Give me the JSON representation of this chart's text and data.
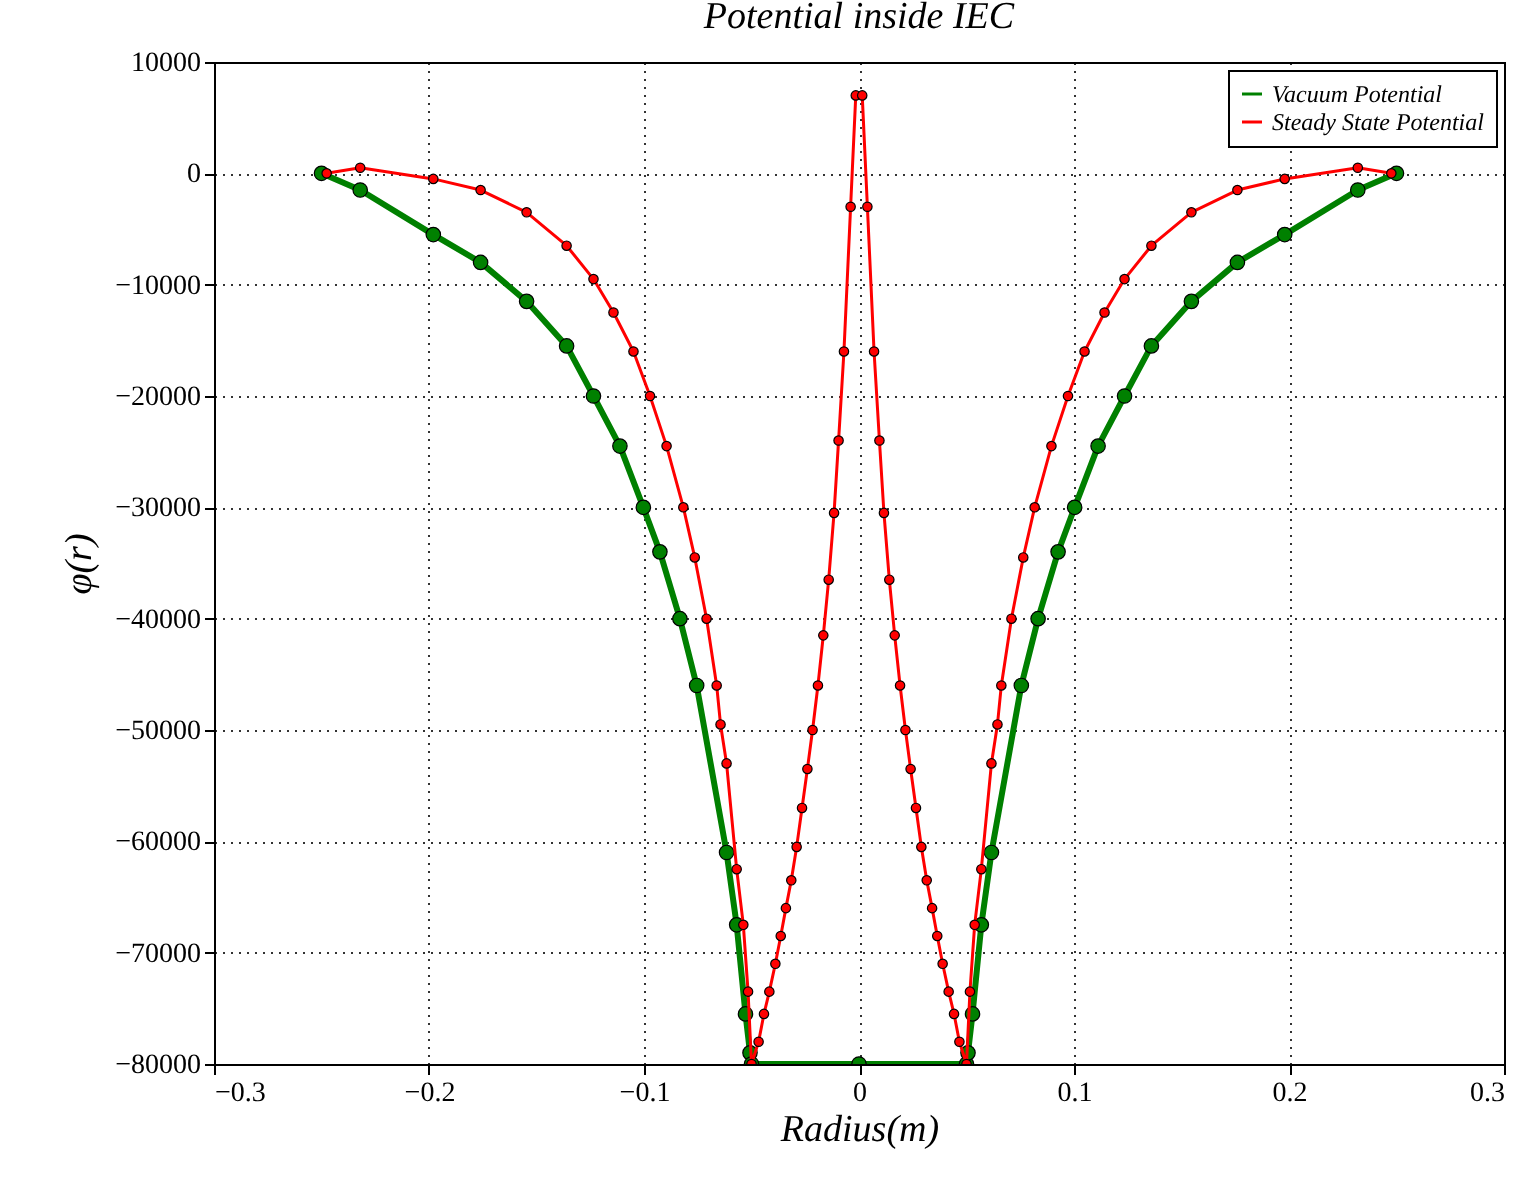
{
  "chart_data": {
    "type": "line",
    "title": "Potential inside IEC",
    "xlabel": "Radius(m)",
    "ylabel": "φ(r)",
    "series": [
      {
        "name": "Vacuum Potential",
        "color": "#008000",
        "x": [
          -0.25,
          -0.232,
          -0.198,
          -0.176,
          -0.1546,
          -0.136,
          -0.1235,
          -0.1112,
          -0.1003,
          -0.0926,
          -0.0833,
          -0.0755,
          -0.0616,
          -0.0569,
          -0.0528,
          -0.0507,
          -0.05,
          0,
          0.05,
          0.0507,
          0.0528,
          0.0569,
          0.0616,
          0.0755,
          0.0833,
          0.0926,
          0.1003,
          0.1112,
          0.1235,
          0.136,
          0.1546,
          0.176,
          0.198,
          0.232,
          0.25
        ],
        "values": [
          0,
          -1500,
          -5500,
          -8000,
          -11500,
          -15500,
          -20000,
          -24500,
          -30000,
          -34000,
          -40000,
          -46000,
          -61000,
          -67500,
          -75500,
          -79000,
          -80000,
          -80000,
          -80000,
          -79000,
          -75500,
          -67500,
          -61000,
          -46000,
          -40000,
          -34000,
          -30000,
          -24500,
          -20000,
          -15500,
          -11500,
          -8000,
          -5500,
          -1500,
          0
        ]
      },
      {
        "name": "Steady State Potential",
        "color": "#ff0000",
        "x": [
          -0.2476,
          -0.232,
          -0.198,
          -0.176,
          -0.1546,
          -0.136,
          -0.1235,
          -0.1142,
          -0.1049,
          -0.0972,
          -0.0895,
          -0.0817,
          -0.0764,
          -0.0709,
          -0.0662,
          -0.0644,
          -0.0616,
          -0.0569,
          -0.0538,
          -0.0516,
          -0.05,
          -0.0467,
          -0.0442,
          -0.0417,
          -0.0389,
          -0.0364,
          -0.034,
          -0.0315,
          -0.029,
          -0.0265,
          -0.024,
          -0.0216,
          -0.0191,
          -0.0166,
          -0.0141,
          -0.0116,
          -0.0095,
          -0.007,
          -0.0039,
          -0.0015,
          0.0015,
          0.0039,
          0.007,
          0.0095,
          0.0116,
          0.0141,
          0.0166,
          0.0191,
          0.0216,
          0.024,
          0.0265,
          0.029,
          0.0315,
          0.034,
          0.0364,
          0.0389,
          0.0417,
          0.0442,
          0.0467,
          0.05,
          0.0516,
          0.0538,
          0.0569,
          0.0616,
          0.0644,
          0.0662,
          0.0709,
          0.0764,
          0.0817,
          0.0895,
          0.0972,
          0.1049,
          0.1142,
          0.1235,
          0.136,
          0.1546,
          0.176,
          0.198,
          0.232,
          0.2476
        ],
        "values": [
          0,
          500,
          -500,
          -1500,
          -3500,
          -6500,
          -9500,
          -12500,
          -16000,
          -20000,
          -24500,
          -30000,
          -34500,
          -40000,
          -46000,
          -49500,
          -53000,
          -62500,
          -67500,
          -73500,
          -80000,
          -78000,
          -75500,
          -73500,
          -71000,
          -68500,
          -66000,
          -63500,
          -60500,
          -57000,
          -53500,
          -50000,
          -46000,
          -41500,
          -36500,
          -30500,
          -24000,
          -16000,
          -3000,
          7000,
          7000,
          -3000,
          -16000,
          -24000,
          -30500,
          -36500,
          -41500,
          -46000,
          -50000,
          -53500,
          -57000,
          -60500,
          -63500,
          -66000,
          -68500,
          -71000,
          -73500,
          -75500,
          -78000,
          -80000,
          -73500,
          -67500,
          -62500,
          -53000,
          -49500,
          -46000,
          -40000,
          -34500,
          -30000,
          -24500,
          -20000,
          -16000,
          -12500,
          -9500,
          -6500,
          -3500,
          -1500,
          -500,
          500,
          0
        ]
      }
    ],
    "xlim": [
      -0.3,
      0.3
    ],
    "xticks": [
      {
        "value": -0.3,
        "label": "−0.3"
      },
      {
        "value": -0.2,
        "label": "−0.2"
      },
      {
        "value": -0.1,
        "label": "−0.1"
      },
      0.0,
      0.1,
      0.2,
      0.3
    ],
    "ylim": [
      -80000,
      10000
    ],
    "yticks": [
      {
        "value": -80000,
        "label": "−80000"
      },
      {
        "value": -70000,
        "label": "−70000"
      },
      {
        "value": -60000,
        "label": "−60000"
      },
      {
        "value": -50000,
        "label": "−50000"
      },
      {
        "value": -40000,
        "label": "−40000"
      },
      {
        "value": -30000,
        "label": "−30000"
      },
      {
        "value": -20000,
        "label": "−20000"
      },
      {
        "value": -10000,
        "label": "−10000"
      },
      0,
      10000
    ],
    "grid": true,
    "legend": "top right",
    "marker": "circle",
    "line_style": "solid"
  }
}
